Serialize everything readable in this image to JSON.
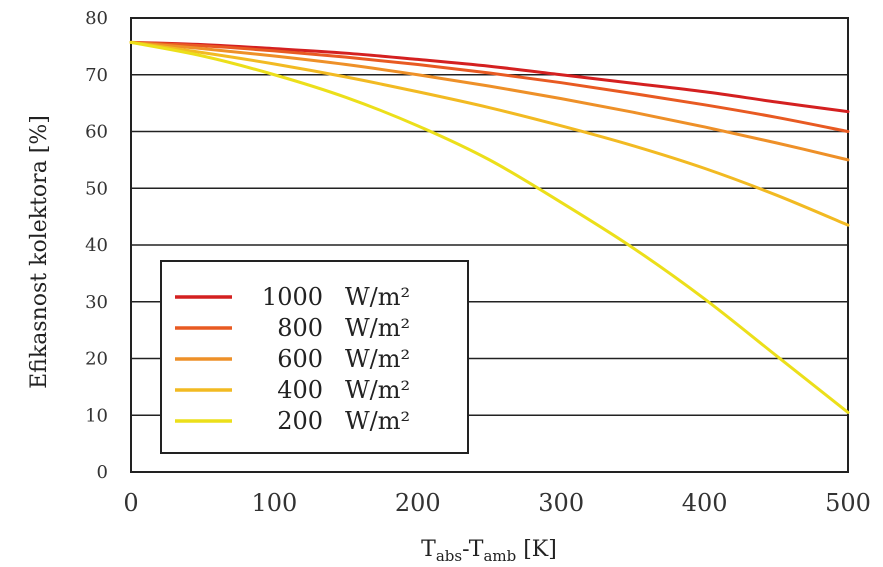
{
  "chart_data": {
    "type": "line",
    "xlabel_main": "T",
    "xlabel_sub1": "abs",
    "xlabel_dash": "-T",
    "xlabel_sub2": "amb",
    "xlabel_unit": " [K]",
    "ylabel": "Efikasnost kolektora [%]",
    "xlim": [
      0,
      500
    ],
    "ylim": [
      0,
      80
    ],
    "x_ticks": [
      0,
      100,
      200,
      300,
      400,
      500
    ],
    "y_ticks": [
      0,
      10,
      20,
      30,
      40,
      50,
      60,
      70,
      80
    ],
    "grid": "horizontal",
    "legend_position": "center-left",
    "legend_unit": "W/m²",
    "series": [
      {
        "name": "1000",
        "color": "#d42020",
        "x": [
          0,
          50,
          100,
          150,
          200,
          250,
          300,
          350,
          400,
          450,
          500
        ],
        "y": [
          75.7,
          75.3,
          74.6,
          73.8,
          72.7,
          71.5,
          70.0,
          68.5,
          67.0,
          65.2,
          63.5
        ]
      },
      {
        "name": "800",
        "color": "#e85a22",
        "x": [
          0,
          50,
          100,
          150,
          200,
          250,
          300,
          350,
          400,
          450,
          500
        ],
        "y": [
          75.7,
          75.1,
          74.2,
          73.1,
          71.8,
          70.3,
          68.6,
          66.7,
          64.7,
          62.5,
          60.0
        ]
      },
      {
        "name": "600",
        "color": "#ee9028",
        "x": [
          0,
          50,
          100,
          150,
          200,
          250,
          300,
          350,
          400,
          450,
          500
        ],
        "y": [
          75.7,
          74.6,
          73.3,
          71.8,
          70.0,
          68.0,
          65.8,
          63.4,
          60.8,
          58.0,
          55.0
        ]
      },
      {
        "name": "400",
        "color": "#f2ba22",
        "x": [
          0,
          50,
          100,
          150,
          200,
          250,
          300,
          350,
          400,
          450,
          500
        ],
        "y": [
          75.7,
          73.9,
          71.9,
          69.6,
          67.0,
          64.2,
          61.0,
          57.5,
          53.5,
          48.8,
          43.5
        ]
      },
      {
        "name": "200",
        "color": "#ecdf1a",
        "x": [
          0,
          50,
          100,
          150,
          200,
          250,
          300,
          350,
          400,
          450,
          500
        ],
        "y": [
          75.7,
          73.3,
          70.0,
          66.0,
          61.0,
          55.0,
          47.5,
          39.5,
          30.5,
          20.5,
          10.5
        ]
      }
    ]
  }
}
